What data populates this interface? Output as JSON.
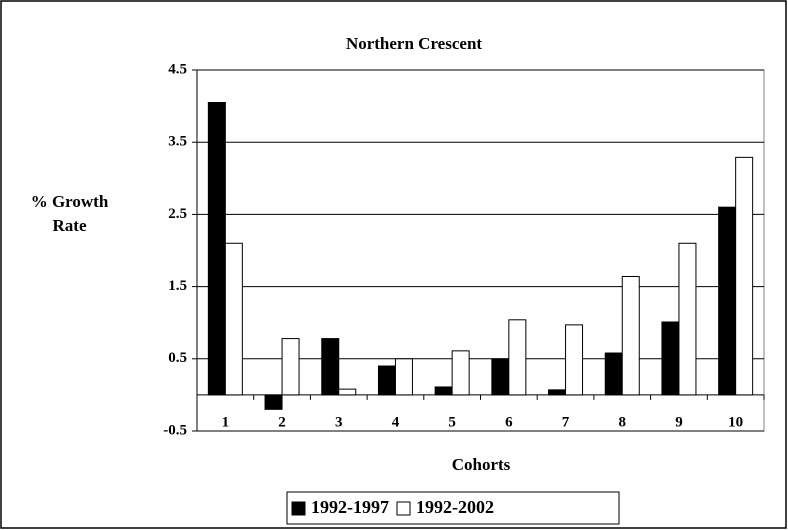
{
  "chart_data": {
    "type": "bar",
    "title": "Northern Crescent",
    "x_label": "Cohorts",
    "y_label": "% Growth Rate",
    "categories": [
      "1",
      "2",
      "3",
      "4",
      "5",
      "6",
      "7",
      "8",
      "9",
      "10"
    ],
    "series": [
      {
        "name": "1992-1997",
        "color": "#000000",
        "values": [
          4.05,
          -0.2,
          0.78,
          0.4,
          0.11,
          0.5,
          0.07,
          0.58,
          1.01,
          2.6
        ]
      },
      {
        "name": "1992-2002",
        "color": "#ffffff",
        "values": [
          2.1,
          0.78,
          0.08,
          0.5,
          0.61,
          1.04,
          0.97,
          1.64,
          2.1,
          3.29
        ]
      }
    ],
    "ylim": [
      -0.5,
      4.5
    ],
    "yticks": [
      -0.5,
      0.5,
      1.5,
      2.5,
      3.5,
      4.5
    ],
    "grid": true,
    "legend": "bottom"
  }
}
